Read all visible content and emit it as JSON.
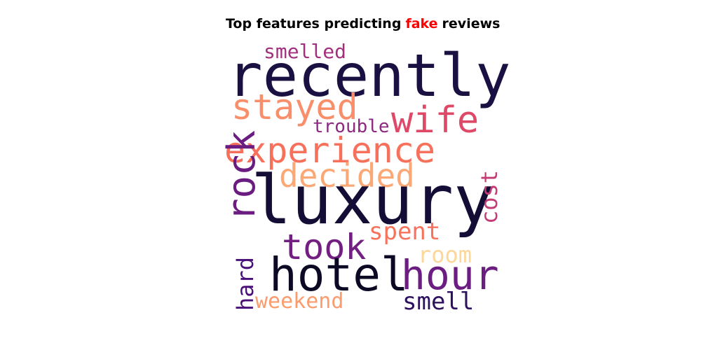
{
  "title": {
    "part1": "Top features predicting",
    "highlight": "fake",
    "part2": "reviews",
    "highlight_color": "#ff0000"
  },
  "wordcloud": {
    "colormap": "magma",
    "words": {
      "recently": {
        "text": "recently",
        "color": "#1a1042"
      },
      "smelled": {
        "text": "smelled",
        "color": "#a3307e"
      },
      "stayed": {
        "text": "stayed",
        "color": "#f98e6b"
      },
      "wife": {
        "text": "wife",
        "color": "#de4968"
      },
      "trouble": {
        "text": "trouble",
        "color": "#8c2981"
      },
      "experience": {
        "text": "experience",
        "color": "#f7705c"
      },
      "decided": {
        "text": "decided",
        "color": "#fba877"
      },
      "luxury": {
        "text": "luxury",
        "color": "#140e36"
      },
      "rock": {
        "text": "rock",
        "color": "#6a1c81"
      },
      "cost": {
        "text": "cost",
        "color": "#c43c75"
      },
      "spent": {
        "text": "spent",
        "color": "#f7725c"
      },
      "took": {
        "text": "took",
        "color": "#721f81"
      },
      "room": {
        "text": "room",
        "color": "#fdd69a"
      },
      "hotel": {
        "text": "hotel",
        "color": "#0b0924"
      },
      "hour": {
        "text": "hour",
        "color": "#6b1d81"
      },
      "hard": {
        "text": "hard",
        "color": "#4a1079"
      },
      "weekend": {
        "text": "weekend",
        "color": "#fc9b6d"
      },
      "smell": {
        "text": "smell",
        "color": "#2c115f"
      }
    }
  }
}
